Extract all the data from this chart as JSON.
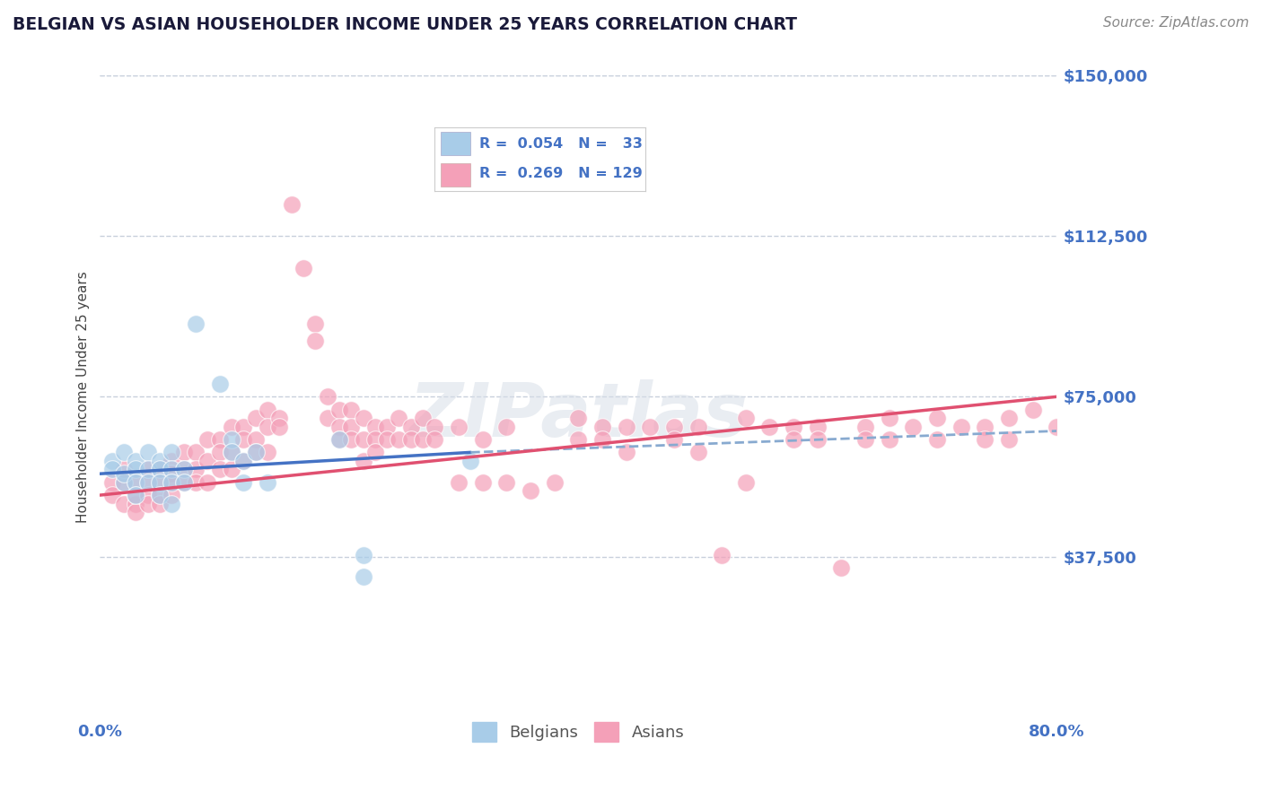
{
  "title": "BELGIAN VS ASIAN HOUSEHOLDER INCOME UNDER 25 YEARS CORRELATION CHART",
  "source": "Source: ZipAtlas.com",
  "ylabel": "Householder Income Under 25 years",
  "xlim": [
    0.0,
    0.8
  ],
  "ylim": [
    0,
    150000
  ],
  "yticks": [
    0,
    37500,
    75000,
    112500,
    150000
  ],
  "xticks": [
    0.0,
    0.1,
    0.2,
    0.3,
    0.4,
    0.5,
    0.6,
    0.7,
    0.8
  ],
  "belgian_color": "#a8cce8",
  "asian_color": "#f4a0b8",
  "belgian_line_color": "#4472c4",
  "asian_line_color": "#e05070",
  "dashed_line_color": "#88aad0",
  "tick_color": "#4472c4",
  "watermark": "ZIPatlas",
  "background_color": "#ffffff",
  "grid_color": "#c8d0dc",
  "legend_label_belgian": "Belgians",
  "legend_label_asian": "Asians",
  "belgian_scatter": [
    [
      0.01,
      60000
    ],
    [
      0.01,
      58000
    ],
    [
      0.02,
      62000
    ],
    [
      0.02,
      55000
    ],
    [
      0.02,
      57000
    ],
    [
      0.03,
      60000
    ],
    [
      0.03,
      58000
    ],
    [
      0.03,
      55000
    ],
    [
      0.03,
      52000
    ],
    [
      0.04,
      62000
    ],
    [
      0.04,
      58000
    ],
    [
      0.04,
      55000
    ],
    [
      0.05,
      60000
    ],
    [
      0.05,
      58000
    ],
    [
      0.05,
      55000
    ],
    [
      0.05,
      52000
    ],
    [
      0.06,
      62000
    ],
    [
      0.06,
      58000
    ],
    [
      0.06,
      55000
    ],
    [
      0.06,
      50000
    ],
    [
      0.07,
      58000
    ],
    [
      0.07,
      55000
    ],
    [
      0.08,
      92000
    ],
    [
      0.1,
      78000
    ],
    [
      0.11,
      65000
    ],
    [
      0.11,
      62000
    ],
    [
      0.12,
      60000
    ],
    [
      0.12,
      55000
    ],
    [
      0.13,
      62000
    ],
    [
      0.14,
      55000
    ],
    [
      0.2,
      65000
    ],
    [
      0.22,
      38000
    ],
    [
      0.22,
      33000
    ],
    [
      0.31,
      60000
    ]
  ],
  "asian_scatter": [
    [
      0.01,
      55000
    ],
    [
      0.01,
      52000
    ],
    [
      0.02,
      55000
    ],
    [
      0.02,
      58000
    ],
    [
      0.02,
      50000
    ],
    [
      0.03,
      55000
    ],
    [
      0.03,
      50000
    ],
    [
      0.03,
      52000
    ],
    [
      0.03,
      48000
    ],
    [
      0.04,
      55000
    ],
    [
      0.04,
      58000
    ],
    [
      0.04,
      52000
    ],
    [
      0.04,
      50000
    ],
    [
      0.05,
      58000
    ],
    [
      0.05,
      55000
    ],
    [
      0.05,
      52000
    ],
    [
      0.05,
      50000
    ],
    [
      0.06,
      60000
    ],
    [
      0.06,
      57000
    ],
    [
      0.06,
      55000
    ],
    [
      0.06,
      52000
    ],
    [
      0.07,
      62000
    ],
    [
      0.07,
      58000
    ],
    [
      0.07,
      55000
    ],
    [
      0.08,
      62000
    ],
    [
      0.08,
      58000
    ],
    [
      0.08,
      55000
    ],
    [
      0.09,
      65000
    ],
    [
      0.09,
      60000
    ],
    [
      0.09,
      55000
    ],
    [
      0.1,
      65000
    ],
    [
      0.1,
      62000
    ],
    [
      0.1,
      58000
    ],
    [
      0.11,
      68000
    ],
    [
      0.11,
      62000
    ],
    [
      0.11,
      58000
    ],
    [
      0.12,
      68000
    ],
    [
      0.12,
      65000
    ],
    [
      0.12,
      60000
    ],
    [
      0.13,
      70000
    ],
    [
      0.13,
      65000
    ],
    [
      0.13,
      62000
    ],
    [
      0.14,
      72000
    ],
    [
      0.14,
      68000
    ],
    [
      0.14,
      62000
    ],
    [
      0.15,
      70000
    ],
    [
      0.15,
      68000
    ],
    [
      0.16,
      120000
    ],
    [
      0.17,
      105000
    ],
    [
      0.18,
      92000
    ],
    [
      0.18,
      88000
    ],
    [
      0.19,
      75000
    ],
    [
      0.19,
      70000
    ],
    [
      0.2,
      72000
    ],
    [
      0.2,
      68000
    ],
    [
      0.2,
      65000
    ],
    [
      0.21,
      72000
    ],
    [
      0.21,
      68000
    ],
    [
      0.21,
      65000
    ],
    [
      0.22,
      70000
    ],
    [
      0.22,
      65000
    ],
    [
      0.22,
      60000
    ],
    [
      0.23,
      68000
    ],
    [
      0.23,
      65000
    ],
    [
      0.23,
      62000
    ],
    [
      0.24,
      68000
    ],
    [
      0.24,
      65000
    ],
    [
      0.25,
      70000
    ],
    [
      0.25,
      65000
    ],
    [
      0.26,
      68000
    ],
    [
      0.26,
      65000
    ],
    [
      0.27,
      70000
    ],
    [
      0.27,
      65000
    ],
    [
      0.28,
      68000
    ],
    [
      0.28,
      65000
    ],
    [
      0.3,
      68000
    ],
    [
      0.3,
      55000
    ],
    [
      0.32,
      65000
    ],
    [
      0.32,
      55000
    ],
    [
      0.34,
      68000
    ],
    [
      0.34,
      55000
    ],
    [
      0.36,
      53000
    ],
    [
      0.38,
      55000
    ],
    [
      0.4,
      70000
    ],
    [
      0.4,
      65000
    ],
    [
      0.42,
      68000
    ],
    [
      0.42,
      65000
    ],
    [
      0.44,
      68000
    ],
    [
      0.44,
      62000
    ],
    [
      0.46,
      68000
    ],
    [
      0.48,
      68000
    ],
    [
      0.48,
      65000
    ],
    [
      0.5,
      68000
    ],
    [
      0.5,
      62000
    ],
    [
      0.52,
      38000
    ],
    [
      0.54,
      70000
    ],
    [
      0.54,
      55000
    ],
    [
      0.56,
      68000
    ],
    [
      0.58,
      68000
    ],
    [
      0.58,
      65000
    ],
    [
      0.6,
      68000
    ],
    [
      0.6,
      65000
    ],
    [
      0.62,
      35000
    ],
    [
      0.64,
      68000
    ],
    [
      0.64,
      65000
    ],
    [
      0.66,
      70000
    ],
    [
      0.66,
      65000
    ],
    [
      0.68,
      68000
    ],
    [
      0.7,
      70000
    ],
    [
      0.7,
      65000
    ],
    [
      0.72,
      68000
    ],
    [
      0.74,
      68000
    ],
    [
      0.74,
      65000
    ],
    [
      0.76,
      70000
    ],
    [
      0.76,
      65000
    ],
    [
      0.78,
      72000
    ],
    [
      0.8,
      68000
    ]
  ],
  "belgian_trend": [
    0.0,
    0.31,
    57000,
    62000
  ],
  "belgian_dashed": [
    0.31,
    0.8,
    62000,
    67000
  ],
  "asian_trend": [
    0.0,
    0.8,
    52000,
    75000
  ]
}
